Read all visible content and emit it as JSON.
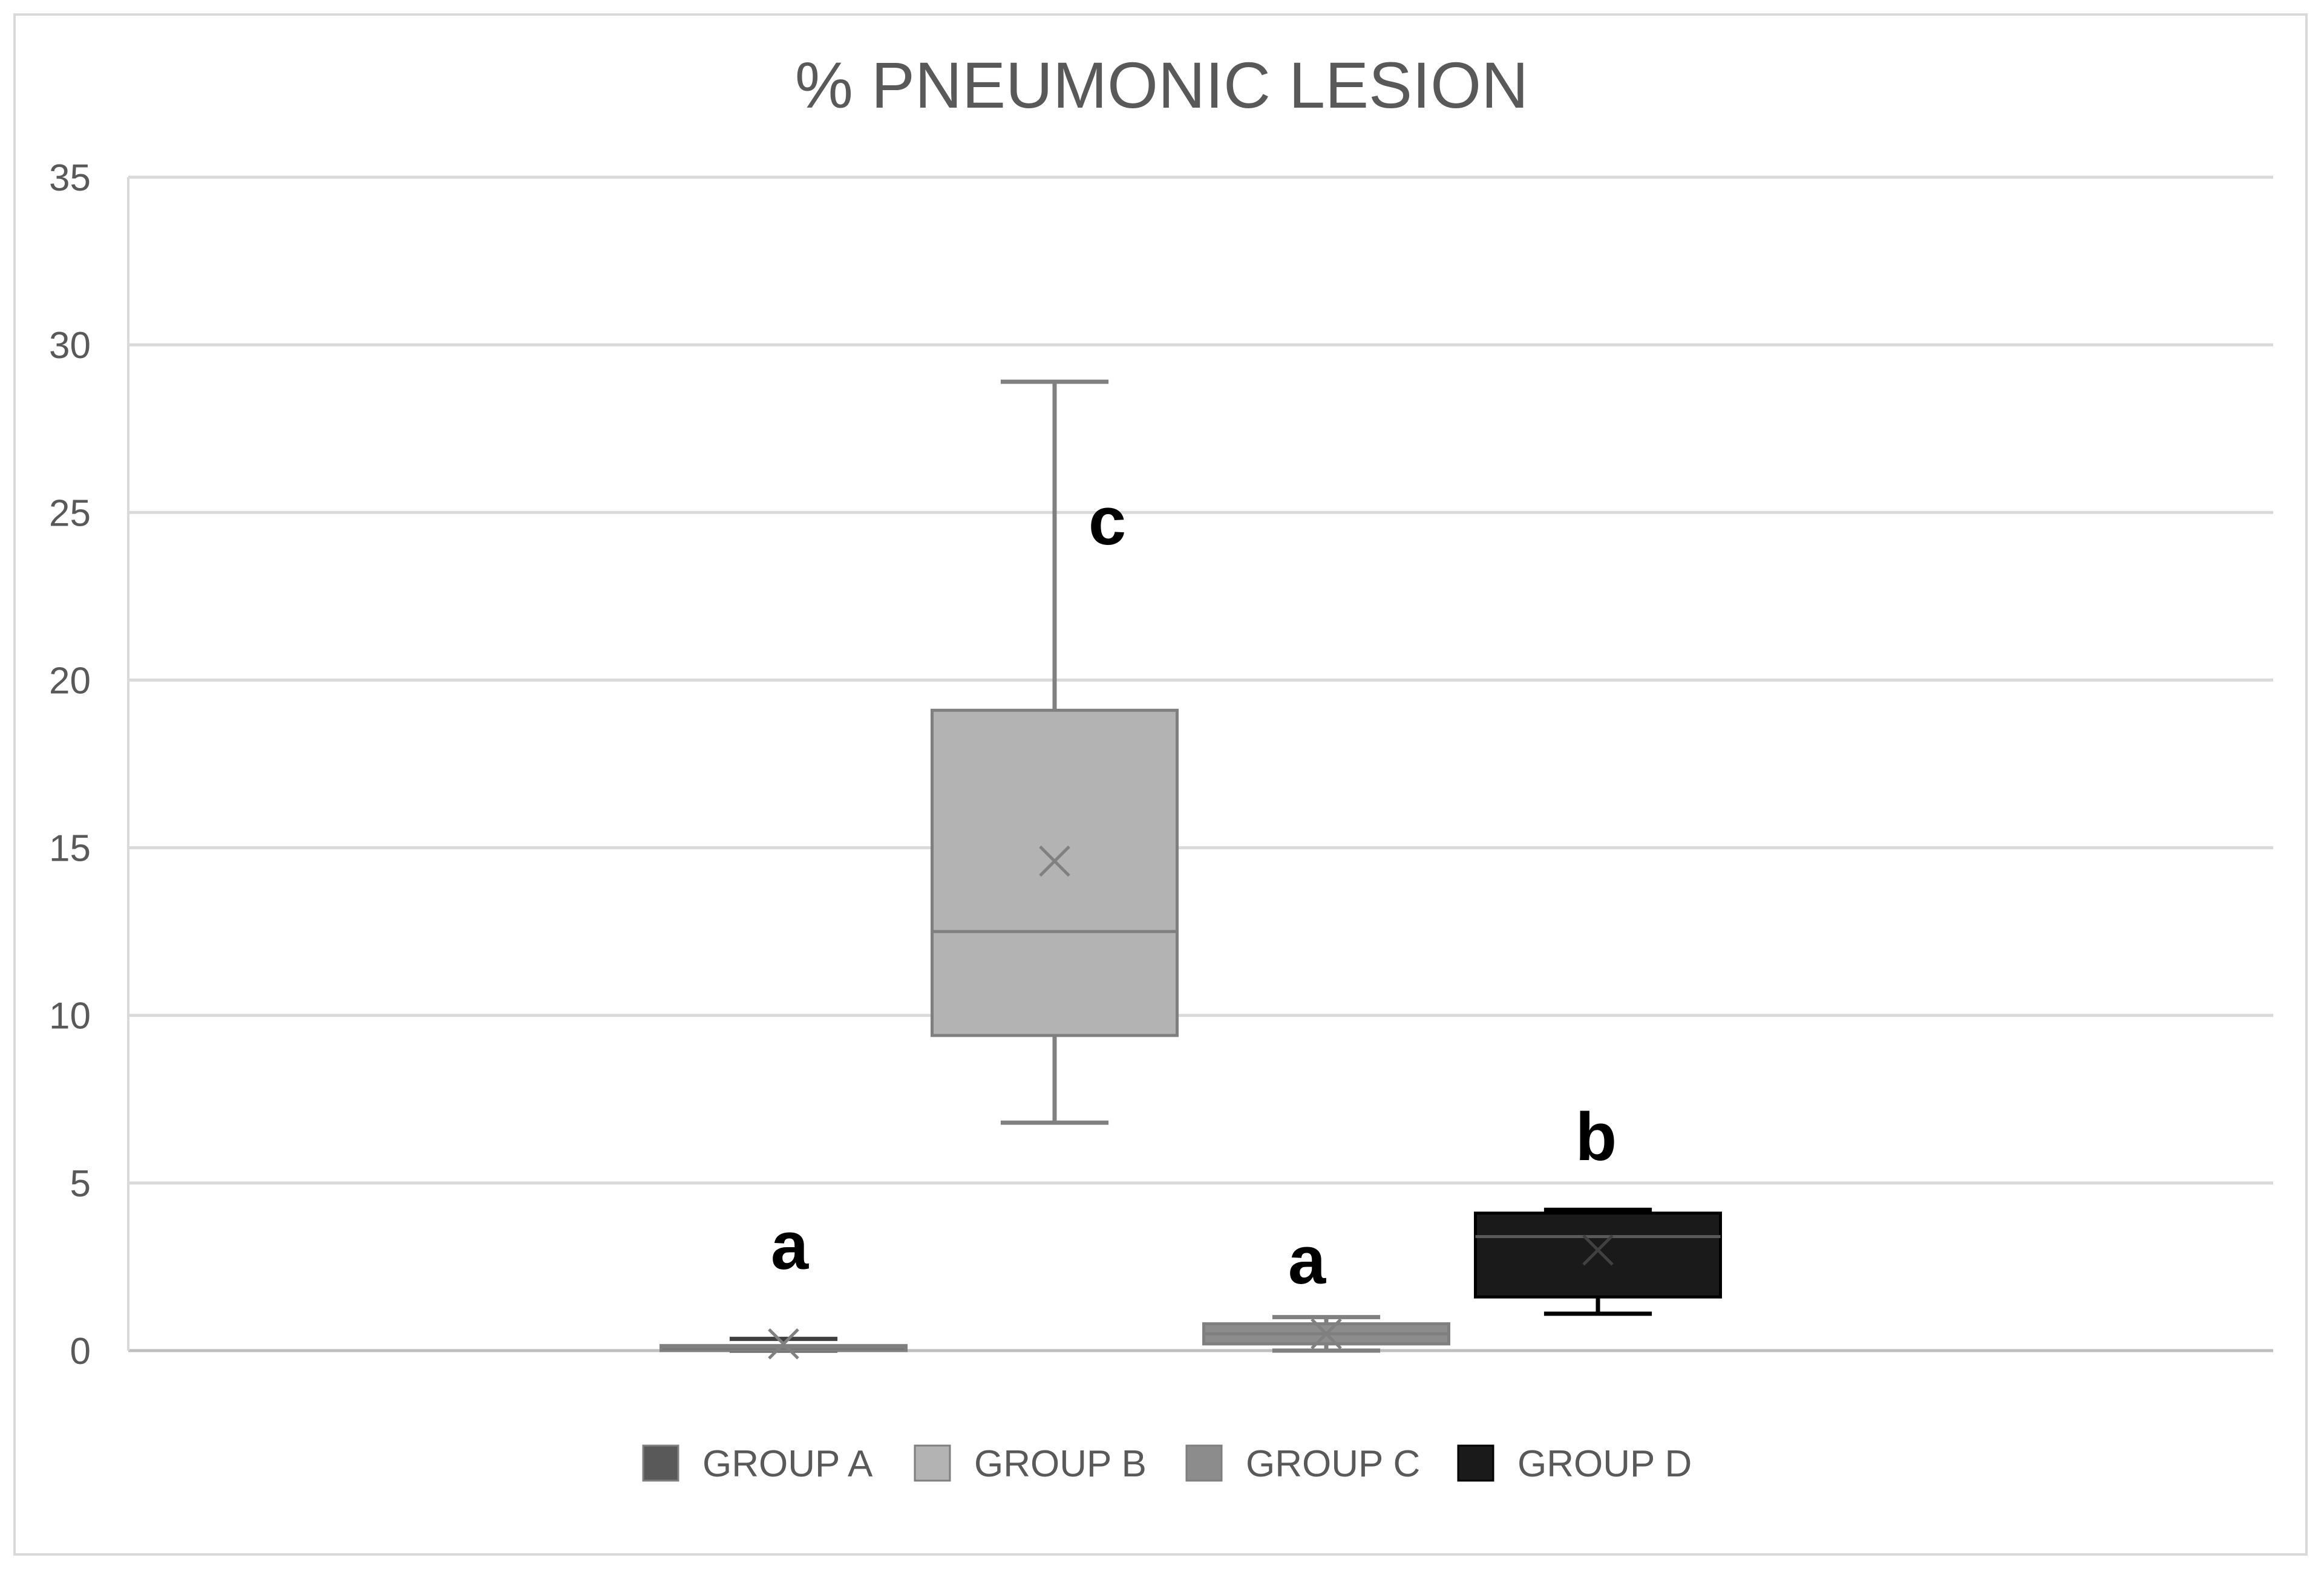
{
  "chart_data": {
    "type": "box",
    "title": "%  PNEUMONIC LESION",
    "ylim": [
      0,
      35
    ],
    "yticks": [
      0,
      5,
      10,
      15,
      20,
      25,
      30,
      35
    ],
    "grid": true,
    "legend_position": "bottom",
    "series": [
      {
        "name": "GROUP A",
        "color": "#595959",
        "min": 0,
        "q1": 0,
        "median": 0.1,
        "q3": 0.15,
        "max": 0.35,
        "mean": 0.2,
        "label": "a"
      },
      {
        "name": "GROUP B",
        "color": "#b3b3b3",
        "min": 6.8,
        "q1": 9.4,
        "median": 12.5,
        "q3": 19.1,
        "max": 28.9,
        "mean": 14.6,
        "label": "c"
      },
      {
        "name": "GROUP C",
        "color": "#8c8c8c",
        "min": 0,
        "q1": 0.2,
        "median": 0.5,
        "q3": 0.8,
        "max": 1.0,
        "mean": 0.5,
        "label": "a"
      },
      {
        "name": "GROUP D",
        "color": "#1a1a1a",
        "min": 1.1,
        "q1": 1.6,
        "median": 3.4,
        "q3": 4.1,
        "max": 4.2,
        "mean": 3.0,
        "label": "b"
      }
    ]
  }
}
